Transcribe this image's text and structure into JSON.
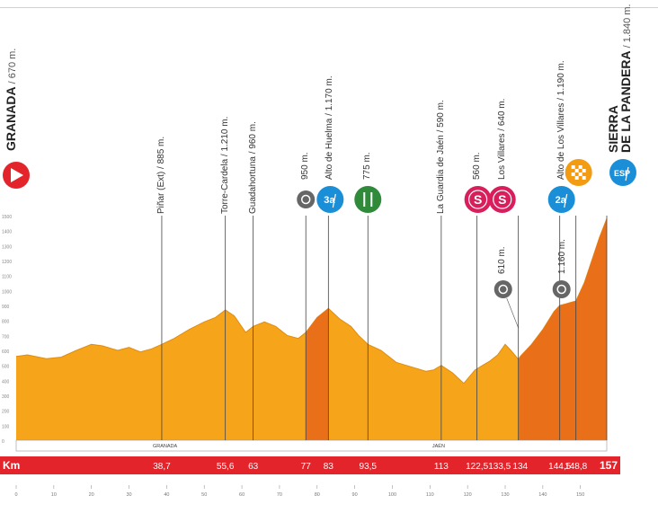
{
  "chart_data": {
    "type": "area",
    "title": "",
    "xlabel": "Km",
    "ylabel": "",
    "x_range": [
      0,
      157
    ],
    "elevation_profile": [
      [
        0,
        560
      ],
      [
        3,
        570
      ],
      [
        8,
        545
      ],
      [
        12,
        555
      ],
      [
        16,
        600
      ],
      [
        20,
        640
      ],
      [
        23,
        630
      ],
      [
        27,
        600
      ],
      [
        30,
        620
      ],
      [
        33,
        590
      ],
      [
        36,
        610
      ],
      [
        38.7,
        640
      ],
      [
        42,
        680
      ],
      [
        46,
        740
      ],
      [
        50,
        790
      ],
      [
        53,
        820
      ],
      [
        55.6,
        870
      ],
      [
        58,
        830
      ],
      [
        61,
        720
      ],
      [
        63,
        760
      ],
      [
        66,
        790
      ],
      [
        69,
        760
      ],
      [
        72,
        700
      ],
      [
        75,
        680
      ],
      [
        77,
        720
      ],
      [
        80,
        820
      ],
      [
        83,
        880
      ],
      [
        86,
        810
      ],
      [
        89,
        760
      ],
      [
        91,
        700
      ],
      [
        93.5,
        640
      ],
      [
        97,
        600
      ],
      [
        101,
        520
      ],
      [
        105,
        490
      ],
      [
        109,
        460
      ],
      [
        111,
        470
      ],
      [
        113,
        500
      ],
      [
        116,
        450
      ],
      [
        119,
        380
      ],
      [
        122,
        470
      ],
      [
        124,
        500
      ],
      [
        126,
        530
      ],
      [
        128,
        570
      ],
      [
        130,
        640
      ],
      [
        131.5,
        600
      ],
      [
        133.5,
        540
      ],
      [
        134,
        560
      ],
      [
        137,
        640
      ],
      [
        140,
        740
      ],
      [
        143,
        860
      ],
      [
        144.5,
        900
      ],
      [
        146,
        910
      ],
      [
        148.8,
        930
      ],
      [
        151,
        1050
      ],
      [
        153,
        1200
      ],
      [
        155,
        1350
      ],
      [
        157,
        1480
      ]
    ],
    "km_marks": [
      "38,7",
      "55,6",
      "63",
      "77",
      "83",
      "93,5",
      "113",
      "122,5",
      "133,5",
      "134",
      "144,5",
      "148,8",
      "157"
    ],
    "axis_ticks": [
      "0",
      "10",
      "20",
      "30",
      "40",
      "50",
      "60",
      "70",
      "80",
      "90",
      "100",
      "110",
      "120",
      "130",
      "140",
      "150"
    ],
    "left_scale_ticks": [
      "0",
      "100",
      "200",
      "300",
      "400",
      "500",
      "600",
      "700",
      "800",
      "900",
      "1000",
      "1100",
      "1200",
      "1300",
      "1400",
      "1500"
    ],
    "towns_on_baseline": [
      {
        "name": "GRANADA",
        "km": 38.7
      },
      {
        "name": "JAÉN",
        "km": 113
      }
    ],
    "points": [
      {
        "km": 0,
        "label": "GRANADA / 670 m.",
        "icon": "start-icon"
      },
      {
        "km": 38.7,
        "label": "Piñar (Ext) / 885 m."
      },
      {
        "km": 55.6,
        "label": "Torre-Cardela / 1.210 m."
      },
      {
        "km": 63,
        "label": "Guadahortuna / 960 m."
      },
      {
        "km": 77,
        "label": "950 m.",
        "icon": "intermediate-time-icon"
      },
      {
        "km": 83,
        "label": "Alto de Huelma / 1.170 m.",
        "icon": "climb-3-icon",
        "climb_cat": "3a"
      },
      {
        "km": 93.5,
        "label": "775 m.",
        "icon": "feed-zone-icon"
      },
      {
        "km": 113,
        "label": "La Guardia de Jaén / 590 m."
      },
      {
        "km": 122.5,
        "label": "560 m.",
        "icon": "sprint-icon",
        "badge": "S"
      },
      {
        "km": 133.5,
        "label": "Los Villares / 640 m.",
        "icon": "sprint-icon",
        "badge": "S",
        "low_label": "610 m.",
        "low_icon": "intermediate-time-icon"
      },
      {
        "km": 144.5,
        "label": "Alto de Los Villares / 1.190 m.",
        "icon": "climb-2-icon",
        "climb_cat": "2a",
        "low_label": "1.160 m.",
        "low_icon": "intermediate-time-icon"
      },
      {
        "km": 148.8,
        "label": "",
        "icon": "checkered-flag-icon"
      },
      {
        "km": 157,
        "label": "SIERRA DE LA PANDERA / 1.840 m.",
        "icon": "special-climb-icon",
        "climb_cat": "ESP"
      }
    ],
    "climb_sections": [
      [
        77,
        83
      ],
      [
        133.5,
        157
      ]
    ],
    "colors": {
      "profile": "#f6a51b",
      "climb": "#e96f18",
      "km_bar": "#e4242b",
      "start": "#e4242b",
      "climb_badge": "#1a8fd8",
      "sprint": "#d81f5c",
      "feed": "#2f8a3a",
      "time": "#666666",
      "checker": "#f39c12"
    }
  }
}
